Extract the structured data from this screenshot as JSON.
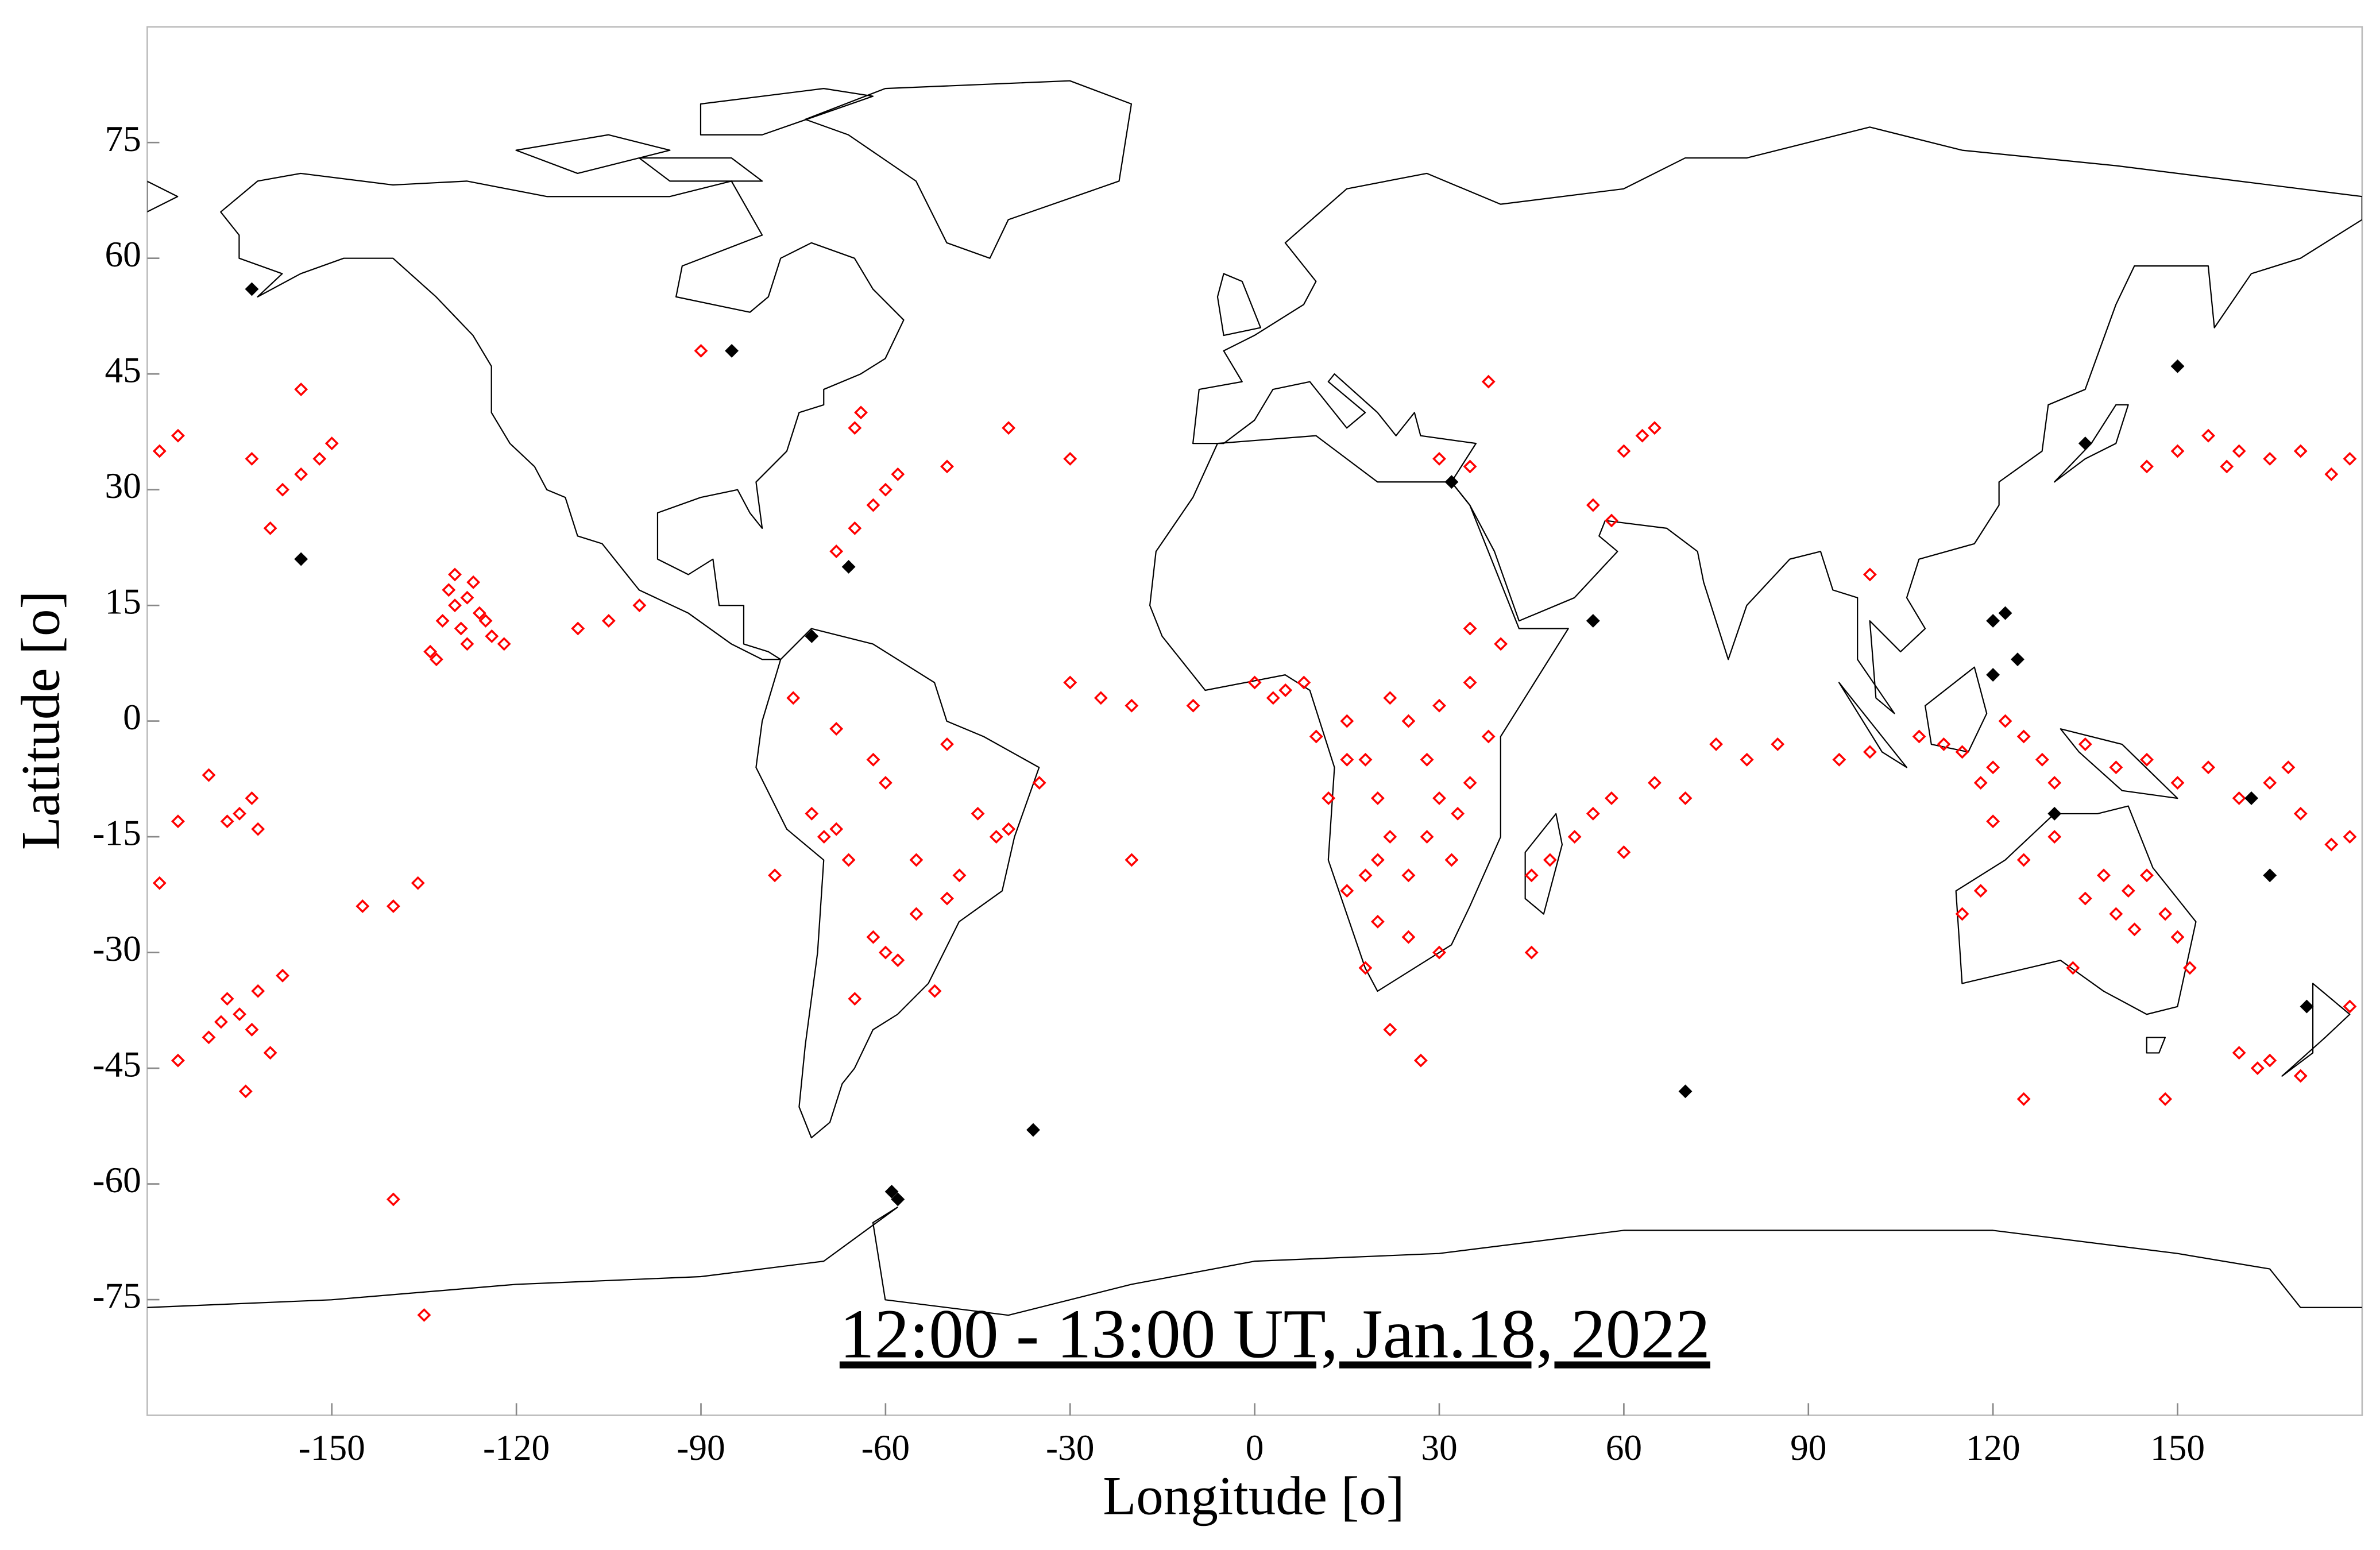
{
  "chart_data": {
    "type": "scatter",
    "title": "12:00 - 13:00 UT, Jan.18, 2022",
    "xlabel": "Longitude [o]",
    "ylabel": "Latitude [o]",
    "xlim": [
      -180,
      180
    ],
    "ylim": [
      -90,
      90
    ],
    "xticks": [
      -150,
      -120,
      -90,
      -60,
      -30,
      0,
      30,
      60,
      90,
      120,
      150
    ],
    "yticks": [
      -75,
      -60,
      -45,
      -30,
      -15,
      0,
      15,
      30,
      45,
      60,
      75
    ],
    "grid": false,
    "series": [
      {
        "color": "#ff0000",
        "filled": false,
        "x": [
          -130,
          -128,
          -126,
          -132,
          -129,
          -127,
          -131,
          -134,
          -125,
          -133,
          -128,
          -130,
          -124,
          -122,
          -165,
          -163,
          -167,
          -160,
          -170,
          -162,
          -175,
          -164,
          -168,
          -158,
          -165,
          -163,
          -167,
          -162,
          -170,
          -175,
          -178,
          -155,
          -152,
          -158,
          -160,
          -150,
          -178,
          -175,
          -163,
          -155,
          -65,
          -62,
          -60,
          -68,
          -58,
          -64,
          -65,
          -50,
          -40,
          -30,
          -110,
          -105,
          -100,
          -140,
          -136,
          -145,
          -140,
          -135,
          -72,
          -70,
          -68,
          -66,
          -60,
          -58,
          -62,
          -55,
          -45,
          -42,
          -48,
          -50,
          -40,
          -60,
          -62,
          -50,
          -55,
          -65,
          -78,
          -75,
          -52,
          -68,
          -30,
          -25,
          -20,
          -10,
          -35,
          -20,
          0,
          3,
          5,
          8,
          10,
          15,
          18,
          20,
          22,
          20,
          18,
          15,
          25,
          28,
          30,
          33,
          35,
          28,
          25,
          30,
          22,
          35,
          32,
          25,
          27,
          18,
          12,
          30,
          38,
          20,
          22,
          15,
          35,
          40,
          45,
          48,
          55,
          58,
          52,
          65,
          70,
          80,
          85,
          95,
          100,
          75,
          45,
          60,
          63,
          60,
          65,
          55,
          58,
          30,
          35,
          38,
          100,
          108,
          112,
          115,
          120,
          125,
          128,
          122,
          118,
          130,
          135,
          140,
          145,
          150,
          155,
          160,
          165,
          168,
          170,
          175,
          178,
          140,
          142,
          145,
          138,
          135,
          143,
          148,
          130,
          125,
          118,
          115,
          120,
          150,
          133,
          152,
          160,
          158,
          165,
          170,
          175,
          178,
          155,
          145,
          150,
          163,
          165,
          160,
          170,
          125,
          148,
          178,
          -90
        ],
        "values": [
          15,
          16,
          14,
          13,
          12,
          18,
          17,
          9,
          13,
          8,
          10,
          19,
          11,
          10,
          -38,
          -40,
          -36,
          -43,
          -41,
          -35,
          -44,
          -48,
          -39,
          -33,
          -12,
          -10,
          -13,
          -14,
          -7,
          -13,
          -21,
          32,
          34,
          30,
          25,
          36,
          35,
          37,
          34,
          43,
          25,
          28,
          30,
          22,
          32,
          40,
          38,
          33,
          38,
          34,
          12,
          13,
          15,
          -24,
          -21,
          -24,
          -62,
          -77,
          -12,
          -15,
          -14,
          -18,
          -30,
          -31,
          -28,
          -25,
          -12,
          -15,
          -20,
          -23,
          -14,
          -8,
          -5,
          -3,
          -18,
          -36,
          -20,
          3,
          -35,
          -1,
          5,
          3,
          2,
          2,
          -8,
          -18,
          5,
          3,
          4,
          5,
          -2,
          0,
          -5,
          -10,
          -15,
          -18,
          -20,
          -22,
          -20,
          -15,
          -10,
          -12,
          -8,
          -5,
          0,
          2,
          3,
          5,
          -18,
          -28,
          -44,
          -32,
          -10,
          -30,
          -2,
          -26,
          -40,
          -5,
          12,
          10,
          -20,
          -18,
          -12,
          -10,
          -15,
          -8,
          -10,
          -5,
          -3,
          -5,
          -4,
          -3,
          -30,
          -17,
          37,
          35,
          38,
          28,
          26,
          34,
          33,
          44,
          19,
          -2,
          -3,
          -4,
          -6,
          -2,
          -5,
          0,
          -8,
          -8,
          -3,
          -6,
          -5,
          -8,
          -6,
          -10,
          -8,
          -6,
          -12,
          -16,
          -15,
          -25,
          -22,
          -20,
          -20,
          -23,
          -27,
          -25,
          -15,
          -18,
          -22,
          -25,
          -13,
          -28,
          -32,
          -32,
          35,
          33,
          34,
          35,
          32,
          34,
          37,
          33,
          35,
          -45,
          -44,
          -43,
          -46,
          -49,
          -49,
          -37,
          48
        ]
      },
      {
        "color": "#000000",
        "filled": true,
        "x": [
          -163,
          -155,
          -72,
          -66,
          -36,
          -59,
          -58,
          55,
          32,
          70,
          120,
          122,
          120,
          124,
          130,
          162,
          165,
          171,
          150,
          135,
          -85
        ],
        "values": [
          56,
          21,
          11,
          20,
          -53,
          -61,
          -62,
          13,
          31,
          -48,
          13,
          14,
          6,
          8,
          -12,
          -10,
          -20,
          -37,
          46,
          36,
          48
        ]
      }
    ]
  }
}
